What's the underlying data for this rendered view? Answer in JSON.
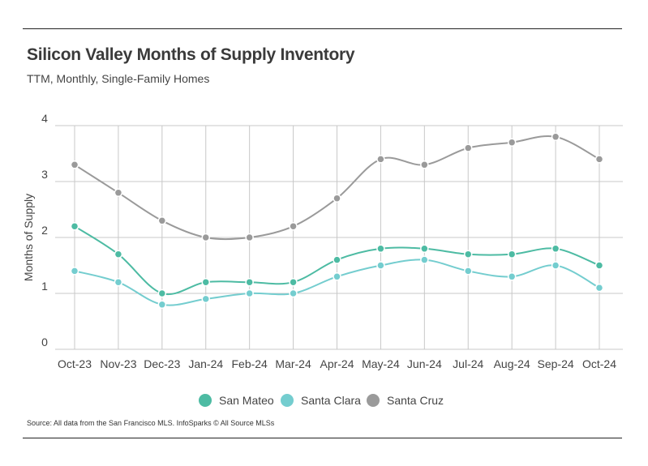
{
  "chart_data": {
    "type": "line",
    "title": "Silicon Valley Months of Supply Inventory",
    "subtitle": "TTM, Monthly, Single-Family Homes",
    "xlabel": "",
    "ylabel": "Months of Supply",
    "ylim": [
      0,
      4
    ],
    "yticks": [
      "0",
      "1",
      "2",
      "3",
      "4"
    ],
    "grid": true,
    "legend_position": "bottom",
    "categories": [
      "Oct-23",
      "Nov-23",
      "Dec-23",
      "Jan-24",
      "Feb-24",
      "Mar-24",
      "Apr-24",
      "May-24",
      "Jun-24",
      "Jul-24",
      "Aug-24",
      "Sep-24",
      "Oct-24"
    ],
    "series": [
      {
        "name": "San Mateo",
        "color": "#4dbba3",
        "values": [
          2.2,
          1.7,
          1.0,
          1.2,
          1.2,
          1.2,
          1.6,
          1.8,
          1.8,
          1.7,
          1.7,
          1.8,
          1.5
        ]
      },
      {
        "name": "Santa Clara",
        "color": "#74cdcf",
        "values": [
          1.4,
          1.2,
          0.8,
          0.9,
          1.0,
          1.0,
          1.3,
          1.5,
          1.6,
          1.4,
          1.3,
          1.5,
          1.1
        ]
      },
      {
        "name": "Santa Cruz",
        "color": "#9a9a9a",
        "values": [
          3.3,
          2.8,
          2.3,
          2.0,
          2.0,
          2.2,
          2.7,
          3.4,
          3.3,
          3.6,
          3.7,
          3.8,
          3.4
        ]
      }
    ],
    "source": "Source:  All data from the San Francisco MLS. InfoSparks © All Source MLSs"
  }
}
